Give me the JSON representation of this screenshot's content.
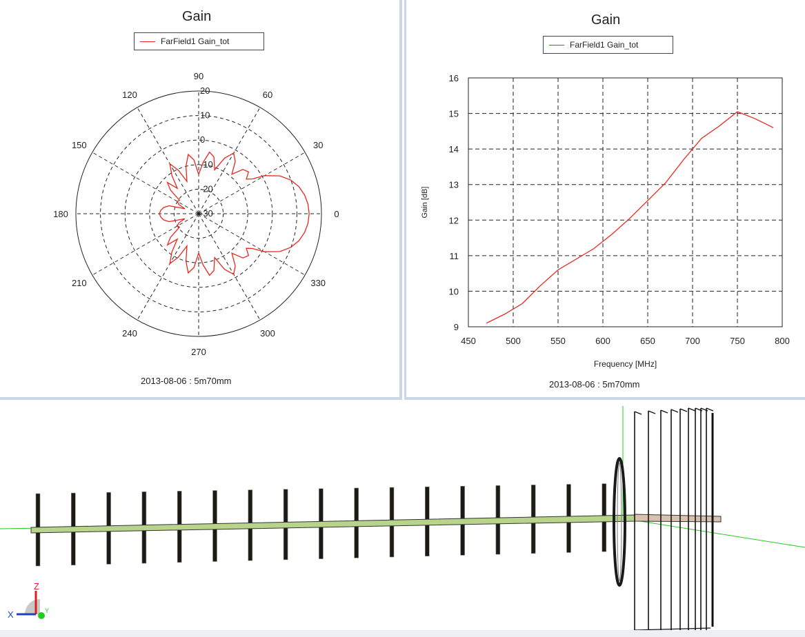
{
  "polar_panel": {
    "title": "Gain",
    "legend": "FarField1 Gain_tot",
    "footer": "2013-08-06 : 5m70mm"
  },
  "line_panel": {
    "title": "Gain",
    "legend": "FarField1 Gain_tot",
    "footer": "2013-08-06 : 5m70mm"
  },
  "model_view": {
    "axis_labels": {
      "x": "X",
      "z": "Z",
      "y": "Y"
    },
    "colors": {
      "boom": "#b7d48a",
      "element": "#1a1a1a",
      "axis_green": "#22cc22",
      "axis_blue": "#1f3fbf",
      "axis_red": "#d42020"
    }
  },
  "chart_data": [
    {
      "type": "polar",
      "title": "Gain",
      "legend": [
        "FarField1 Gain_tot"
      ],
      "angle_ticks": [
        "0",
        "30",
        "60",
        "90",
        "120",
        "150",
        "180",
        "210",
        "240",
        "270",
        "300",
        "330"
      ],
      "radial_ticks": [
        "20",
        "10",
        "0",
        "-10",
        "-20",
        "-30"
      ],
      "radial_range": [
        -30,
        20
      ],
      "series": [
        {
          "name": "FarField1 Gain_tot",
          "color": "#e8261e",
          "angles_deg": [
            0,
            5,
            10,
            15,
            20,
            25,
            30,
            33,
            36,
            40,
            45,
            50,
            55,
            60,
            65,
            70,
            75,
            80,
            85,
            90,
            95,
            100,
            105,
            110,
            115,
            120,
            125,
            130,
            135,
            140,
            145,
            150,
            155,
            160,
            165,
            170,
            175,
            180,
            185,
            190,
            195,
            200,
            205,
            210,
            215,
            220,
            225,
            230,
            235,
            240,
            245,
            250,
            255,
            260,
            265,
            270,
            275,
            280,
            285,
            290,
            295,
            300,
            305,
            310,
            315,
            320,
            324,
            327,
            330,
            335,
            340,
            345,
            350,
            355,
            360
          ],
          "gain_db": [
            15.0,
            14.7,
            13.8,
            12.3,
            10.0,
            6.5,
            1.0,
            -4.0,
            -6.0,
            -3.5,
            -4.5,
            -9.0,
            -4.0,
            -1.5,
            -5.0,
            -11.0,
            -6.0,
            -4.5,
            -9.0,
            -14.0,
            -8.0,
            -5.5,
            -10.0,
            -16.0,
            -10.5,
            -6.5,
            -11.0,
            -16.5,
            -12.0,
            -15.0,
            -20.5,
            -20.0,
            -21.0,
            -24.0,
            -17.5,
            -15.5,
            -14.5,
            -14.0,
            -14.5,
            -15.5,
            -17.5,
            -24.0,
            -21.0,
            -20.0,
            -20.5,
            -15.0,
            -12.0,
            -16.5,
            -11.0,
            -6.5,
            -10.5,
            -16.0,
            -10.0,
            -5.5,
            -8.0,
            -14.0,
            -9.0,
            -4.5,
            -6.0,
            -11.0,
            -5.0,
            -1.5,
            -4.0,
            -9.0,
            -4.5,
            -3.5,
            -6.0,
            -4.0,
            1.0,
            6.5,
            10.0,
            12.3,
            13.8,
            14.7,
            15.0
          ]
        }
      ]
    },
    {
      "type": "line",
      "title": "Gain",
      "legend": [
        "FarField1 Gain_tot"
      ],
      "xlabel": "Frequency [MHz]",
      "ylabel": "Gain [dB]",
      "xlim": [
        450,
        800
      ],
      "ylim": [
        9,
        16
      ],
      "xticks": [
        450,
        500,
        550,
        600,
        650,
        700,
        750,
        800
      ],
      "yticks": [
        9,
        10,
        11,
        12,
        13,
        14,
        15,
        16
      ],
      "grid": true,
      "series": [
        {
          "name": "FarField1 Gain_tot",
          "color": "#e8261e",
          "x": [
            470,
            490,
            510,
            530,
            550,
            570,
            590,
            610,
            630,
            650,
            670,
            690,
            710,
            730,
            750,
            770,
            790
          ],
          "y": [
            9.1,
            9.35,
            9.65,
            10.15,
            10.6,
            10.9,
            11.2,
            11.6,
            12.05,
            12.55,
            13.05,
            13.7,
            14.3,
            14.65,
            15.05,
            14.85,
            14.6
          ]
        }
      ]
    }
  ]
}
